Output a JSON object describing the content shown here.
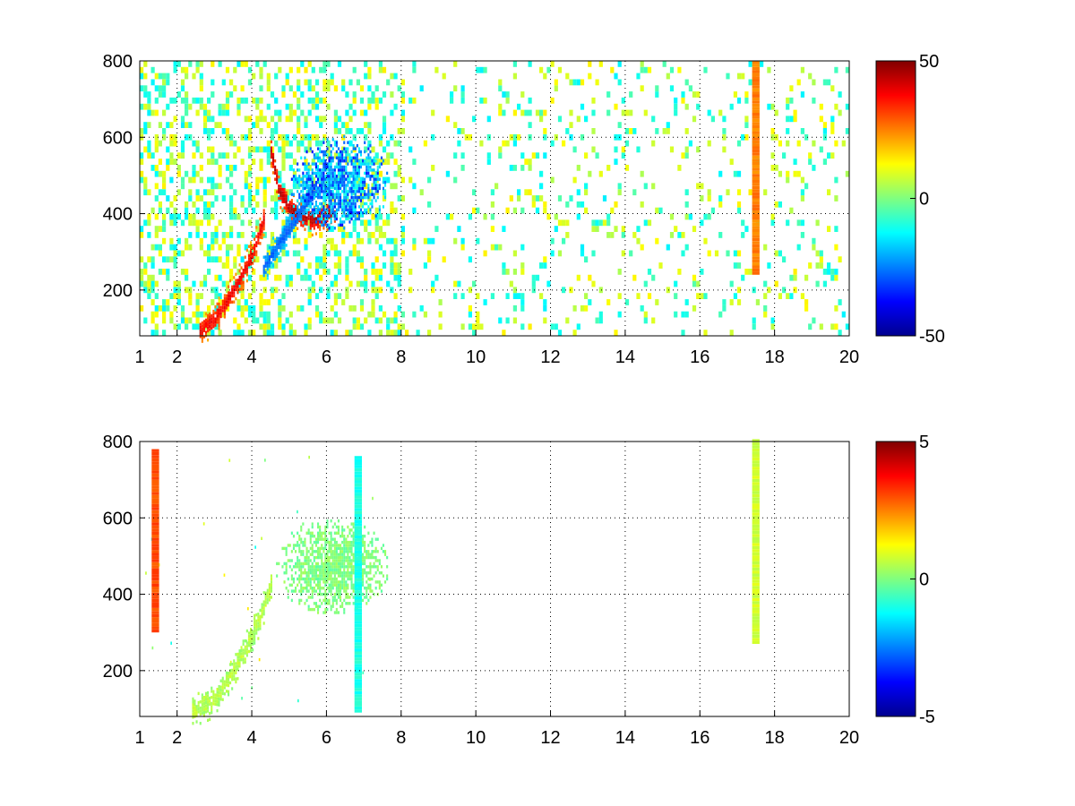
{
  "chart_data": [
    {
      "type": "heatmap",
      "title": "",
      "xlabel": "",
      "ylabel": "",
      "xlim": [
        1,
        20
      ],
      "ylim": [
        80,
        800
      ],
      "x_ticks": [
        1,
        2,
        4,
        6,
        8,
        10,
        12,
        14,
        16,
        18,
        20
      ],
      "x_tick_labels": [
        "1",
        "2",
        "4",
        "6",
        "8",
        "10",
        "12",
        "14",
        "16",
        "18",
        "20"
      ],
      "y_ticks": [
        200,
        400,
        600,
        800
      ],
      "y_tick_labels": [
        "200",
        "400",
        "600",
        "800"
      ],
      "grid": true,
      "colormap": "jet",
      "clim": [
        -50,
        50
      ],
      "colorbar_ticks": [
        -50,
        0,
        50
      ],
      "colorbar_tick_labels": [
        "-50",
        "0",
        "50"
      ],
      "features": [
        {
          "kind": "ridge",
          "x": [
            2.6,
            3.0,
            3.4,
            3.7,
            4.0,
            4.3
          ],
          "y": [
            90,
            120,
            180,
            230,
            290,
            380
          ],
          "value": 35
        },
        {
          "kind": "ridge",
          "x": [
            4.5,
            4.7,
            5.0,
            5.3,
            5.6,
            5.9,
            6.2
          ],
          "y": [
            560,
            460,
            410,
            390,
            380,
            390,
            400
          ],
          "value": 40
        },
        {
          "kind": "ridge",
          "x": [
            4.3,
            4.6,
            5.0,
            5.4,
            5.8
          ],
          "y": [
            250,
            300,
            360,
            420,
            460
          ],
          "value": -25
        },
        {
          "kind": "blob",
          "x_range": [
            5.0,
            7.7
          ],
          "y_range": [
            350,
            600
          ],
          "value": -30
        },
        {
          "kind": "column",
          "x": 17.5,
          "y_range": [
            240,
            800
          ],
          "value": 25
        }
      ]
    },
    {
      "type": "heatmap",
      "title": "",
      "xlabel": "",
      "ylabel": "",
      "xlim": [
        1,
        20
      ],
      "ylim": [
        80,
        800
      ],
      "x_ticks": [
        1,
        2,
        4,
        6,
        8,
        10,
        12,
        14,
        16,
        18,
        20
      ],
      "x_tick_labels": [
        "1",
        "2",
        "4",
        "6",
        "8",
        "10",
        "12",
        "14",
        "16",
        "18",
        "20"
      ],
      "y_ticks": [
        200,
        400,
        600,
        800
      ],
      "y_tick_labels": [
        "200",
        "400",
        "600",
        "800"
      ],
      "grid": true,
      "colormap": "jet",
      "clim": [
        -5,
        5
      ],
      "colorbar_ticks": [
        -5,
        0,
        5
      ],
      "colorbar_tick_labels": [
        "-5",
        "0",
        "5"
      ],
      "features": [
        {
          "kind": "ridge",
          "x": [
            2.4,
            2.9,
            3.4,
            3.8,
            4.2,
            4.5
          ],
          "y": [
            90,
            110,
            180,
            250,
            330,
            420
          ],
          "value": 0.5
        },
        {
          "kind": "blob",
          "x_range": [
            4.6,
            7.7
          ],
          "y_range": [
            340,
            600
          ],
          "value": 0
        },
        {
          "kind": "column",
          "x": 6.85,
          "y_range": [
            90,
            760
          ],
          "value": -1
        },
        {
          "kind": "column",
          "x": 17.5,
          "y_range": [
            270,
            800
          ],
          "value": 0.8
        },
        {
          "kind": "column",
          "x": 1.42,
          "y_range": [
            300,
            780
          ],
          "value": 3
        }
      ]
    }
  ]
}
